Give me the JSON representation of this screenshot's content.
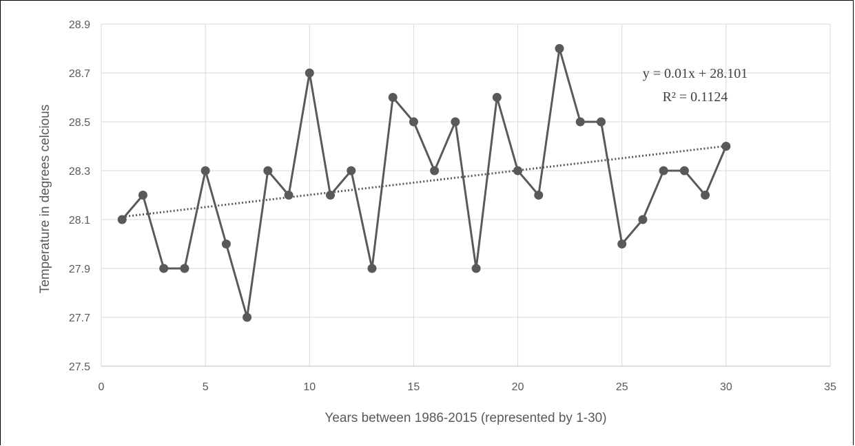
{
  "chart_data": {
    "type": "scatter",
    "title": "",
    "xlabel": "Years between 1986-2015 (represented by 1-30)",
    "ylabel": "Temperature in degrees celcious",
    "xlim": [
      0,
      35
    ],
    "ylim": [
      27.5,
      28.9
    ],
    "x_ticks": [
      "0",
      "5",
      "10",
      "15",
      "20",
      "25",
      "30",
      "35"
    ],
    "y_ticks": [
      "27.5",
      "27.7",
      "27.9",
      "28.1",
      "28.3",
      "28.5",
      "28.7",
      "28.9"
    ],
    "grid": true,
    "legend": "none",
    "series": [
      {
        "x": [
          1,
          2,
          3,
          4,
          5,
          6,
          7,
          8,
          9,
          10,
          11,
          12,
          13,
          14,
          15,
          16,
          17,
          18,
          19,
          20,
          21,
          22,
          23,
          24,
          25,
          26,
          27,
          28,
          29,
          30
        ],
        "y": [
          28.1,
          28.2,
          27.9,
          27.9,
          28.3,
          28.0,
          27.7,
          28.3,
          28.2,
          28.7,
          28.2,
          28.3,
          27.9,
          28.6,
          28.5,
          28.3,
          28.5,
          27.9,
          28.6,
          28.3,
          28.2,
          28.8,
          28.5,
          28.5,
          28.0,
          28.1,
          28.3,
          28.3,
          28.2,
          28.4
        ],
        "style": "line-with-markers",
        "color": "#595959"
      }
    ],
    "trendline": {
      "type": "linear",
      "slope": 0.01,
      "intercept": 28.101,
      "style": "dotted",
      "color": "#595959",
      "equation": "y = 0.01x + 28.101",
      "r_squared": "R² = 0.1124"
    }
  }
}
